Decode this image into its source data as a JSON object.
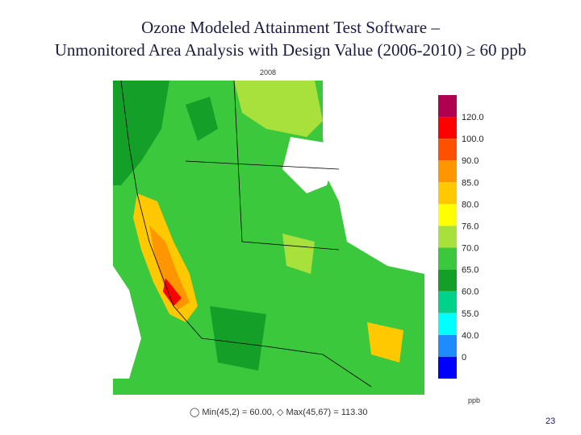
{
  "title": [
    "Ozone Modeled Attainment Test Software –",
    "Unmonitored Area Analysis with Design Value (2006-2010) ≥ 60 ppb"
  ],
  "map": {
    "year": "2008",
    "legend": {
      "labels": [
        "120.0",
        "100.0",
        "90.0",
        "85.0",
        "80.0",
        "76.0",
        "70.0",
        "65.0",
        "60.0",
        "55.0",
        "40.0",
        "0"
      ],
      "colors": [
        "#b0004f",
        "#ff0000",
        "#ff5000",
        "#ff9600",
        "#ffc800",
        "#ffff00",
        "#a8e03c",
        "#3cc83c",
        "#14a028",
        "#00d28c",
        "#00ffff",
        "#1e8cff",
        "#0000ff"
      ],
      "unit": "ppb"
    },
    "footer": "◯ Min(45,2) = 60.00, ◇ Max(45,67) = 113.30"
  },
  "page_number": "23"
}
